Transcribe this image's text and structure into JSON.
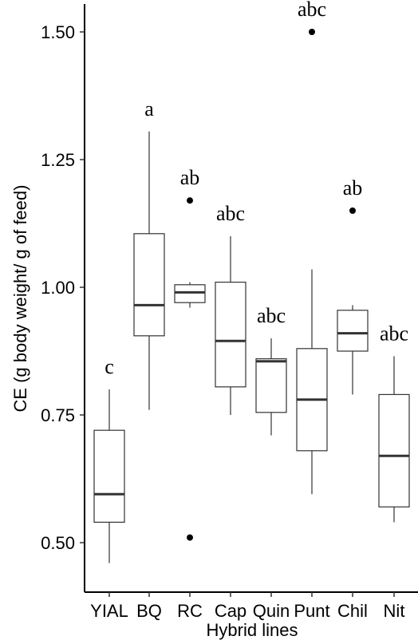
{
  "chart_data": {
    "type": "box",
    "xlabel": "Hybrid lines",
    "ylabel": "CE (g body weight/ g of feed)",
    "ylim": [
      0.46,
      1.53
    ],
    "yticks": [
      0.5,
      0.75,
      1.0,
      1.25,
      1.5
    ],
    "ytick_labels": [
      "0.50",
      "0.75",
      "1.00",
      "1.25",
      "1.50"
    ],
    "grid": false,
    "legend": "none",
    "categories": [
      "YIAL",
      "BQ",
      "RC",
      "Cap",
      "Quin",
      "Punt",
      "Chil",
      "Nit"
    ],
    "boxes": [
      {
        "category": "YIAL",
        "whisker_low": 0.46,
        "q1": 0.54,
        "median": 0.595,
        "q3": 0.72,
        "whisker_high": 0.8,
        "outliers": [],
        "letter": "c"
      },
      {
        "category": "BQ",
        "whisker_low": 0.76,
        "q1": 0.905,
        "median": 0.965,
        "q3": 1.105,
        "whisker_high": 1.305,
        "outliers": [],
        "letter": "a"
      },
      {
        "category": "RC",
        "whisker_low": 0.96,
        "q1": 0.97,
        "median": 0.99,
        "q3": 1.005,
        "whisker_high": 1.01,
        "outliers": [
          1.17,
          0.51
        ],
        "letter": "ab"
      },
      {
        "category": "Cap",
        "whisker_low": 0.75,
        "q1": 0.805,
        "median": 0.895,
        "q3": 1.01,
        "whisker_high": 1.1,
        "outliers": [],
        "letter": "abc"
      },
      {
        "category": "Quin",
        "whisker_low": 0.71,
        "q1": 0.755,
        "median": 0.855,
        "q3": 0.86,
        "whisker_high": 0.9,
        "outliers": [],
        "letter": "abc"
      },
      {
        "category": "Punt",
        "whisker_low": 0.595,
        "q1": 0.68,
        "median": 0.78,
        "q3": 0.88,
        "whisker_high": 1.035,
        "outliers": [
          1.5
        ],
        "letter": "abc"
      },
      {
        "category": "Chil",
        "whisker_low": 0.79,
        "q1": 0.875,
        "median": 0.91,
        "q3": 0.955,
        "whisker_high": 0.965,
        "outliers": [
          1.15
        ],
        "letter": "ab"
      },
      {
        "category": "Nit",
        "whisker_low": 0.54,
        "q1": 0.57,
        "median": 0.67,
        "q3": 0.79,
        "whisker_high": 0.865,
        "outliers": [],
        "letter": "abc"
      }
    ]
  }
}
